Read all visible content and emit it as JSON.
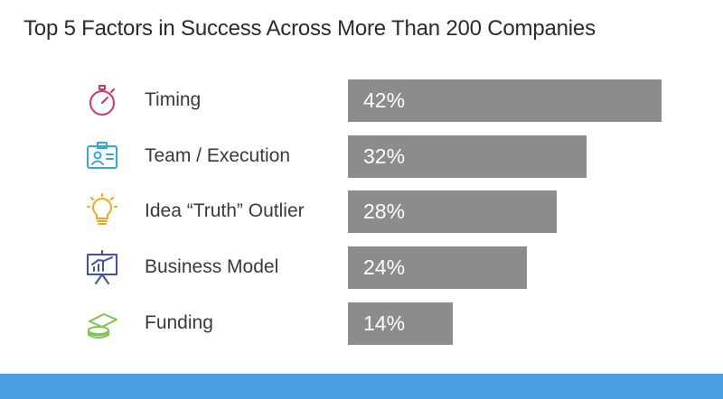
{
  "chart_data": {
    "type": "bar",
    "orientation": "horizontal",
    "title": "Top 5 Factors in Success Across More Than 200 Companies",
    "categories": [
      "Timing",
      "Team / Execution",
      "Idea “Truth” Outlier",
      "Business Model",
      "Funding"
    ],
    "values": [
      42,
      32,
      28,
      24,
      14
    ],
    "value_labels": [
      "42%",
      "32%",
      "28%",
      "24%",
      "14%"
    ],
    "icons": [
      "stopwatch-icon",
      "id-badge-icon",
      "lightbulb-icon",
      "presentation-chart-icon",
      "money-stack-icon"
    ],
    "icon_colors": [
      "#d6336c",
      "#35a7dc",
      "#f2a71b",
      "#3f51a8",
      "#7bc84c"
    ],
    "bar_color": "#8c8c8c",
    "grid": false
  },
  "footer_band_color": "#4a9fe0"
}
